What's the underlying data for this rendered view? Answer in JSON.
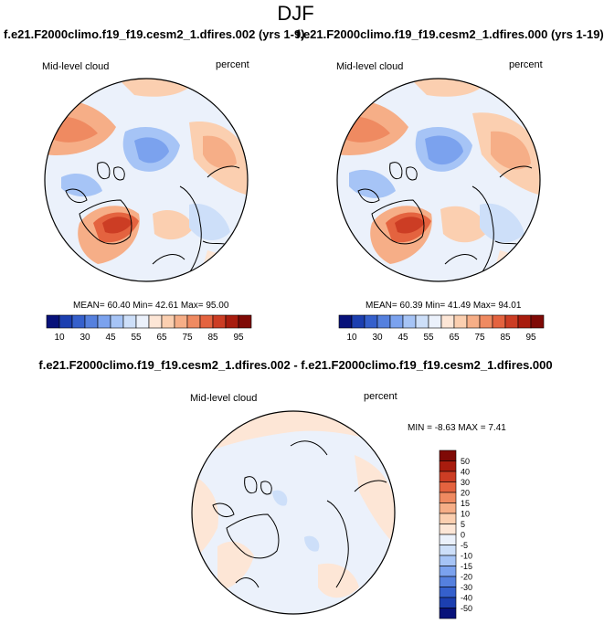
{
  "figure": {
    "season": "DJF",
    "left_panel": {
      "title": "f.e21.F2000climo.f19_f19.cesm2_1.dfires.002 (yrs 1-9)",
      "variable": "Mid-level cloud",
      "units": "percent",
      "stats": "MEAN= 60.40  Min= 42.61  Max= 95.00"
    },
    "right_panel": {
      "title": "f.e21.F2000climo.f19_f19.cesm2_1.dfires.000 (yrs 1-19)",
      "variable": "Mid-level cloud",
      "units": "percent",
      "stats": "MEAN= 60.39  Min= 41.49  Max= 94.01"
    },
    "diff_panel": {
      "title": "f.e21.F2000climo.f19_f19.cesm2_1.dfires.002 - f.e21.F2000climo.f19_f19.cesm2_1.dfires.000",
      "variable": "Mid-level cloud",
      "units": "percent",
      "stats": "MIN =  -8.63 MAX =   7.41"
    }
  },
  "colorbar_abs": {
    "colors": [
      "#08127a",
      "#1c3fb0",
      "#3560cc",
      "#5580de",
      "#7ba2ee",
      "#a6c4f6",
      "#cddff9",
      "#ebf1fb",
      "#fde6d6",
      "#fbcfb0",
      "#f6ae87",
      "#ef8a61",
      "#e4633f",
      "#cc3d24",
      "#a81c0e",
      "#7f0a06"
    ],
    "tick_labels": [
      "10",
      "30",
      "45",
      "55",
      "65",
      "75",
      "85",
      "95"
    ]
  },
  "colorbar_diff": {
    "colors": [
      "#7f0a06",
      "#a81c0e",
      "#cc3d24",
      "#e4633f",
      "#ef8a61",
      "#f6ae87",
      "#fbcfb0",
      "#fde6d6",
      "#ebf1fb",
      "#cddff9",
      "#a6c4f6",
      "#7ba2ee",
      "#5580de",
      "#3560cc",
      "#1c3fb0",
      "#08127a"
    ],
    "tick_labels": [
      "50",
      "40",
      "30",
      "20",
      "15",
      "10",
      "5",
      "0",
      "-5",
      "-10",
      "-15",
      "-20",
      "-30",
      "-40",
      "-50"
    ]
  }
}
